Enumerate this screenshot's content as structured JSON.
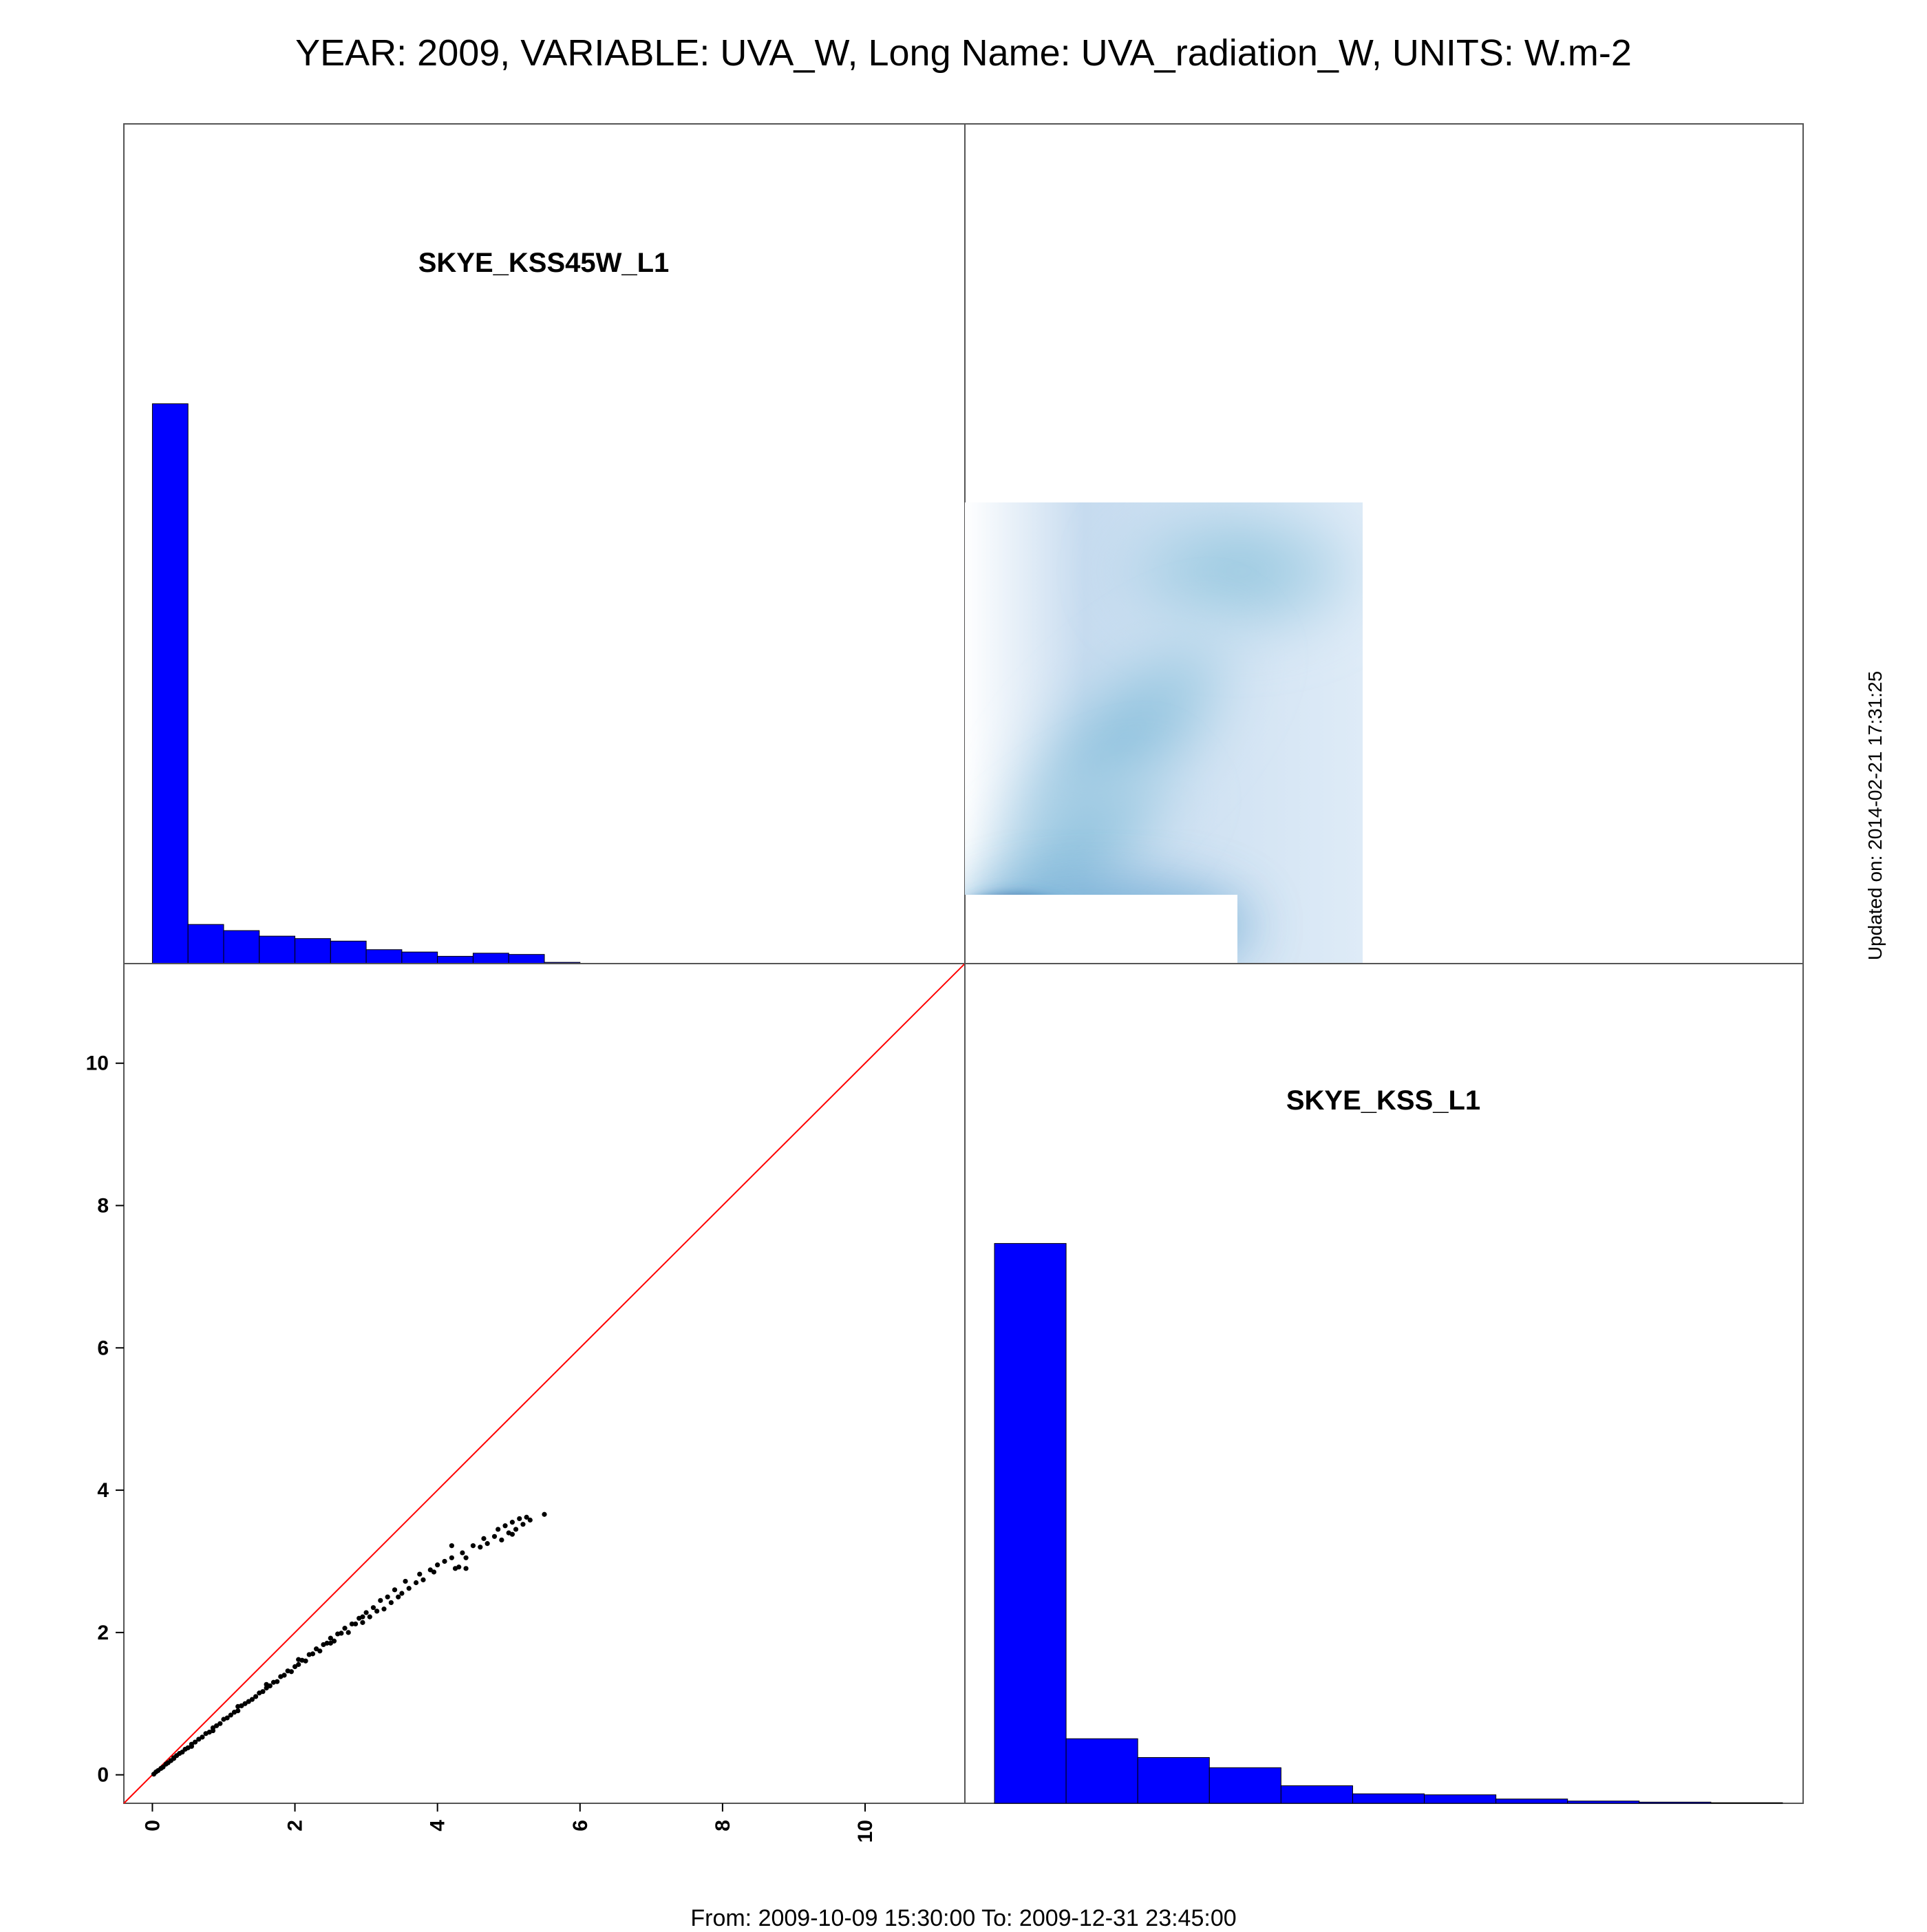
{
  "header": {
    "title": "YEAR: 2009, VARIABLE: UVA_W, Long Name: UVA_radiation_W, UNITS: W.m-2"
  },
  "footer": {
    "range": "From: 2009-10-09 15:30:00 To: 2009-12-31 23:45:00"
  },
  "side": {
    "updated": "Updated on: 2014-02-21 17:31:25"
  },
  "colors": {
    "hist_fill": "#0000ff",
    "identity_line": "#ff0000",
    "points": "#000000",
    "density_low": "#9ecae1",
    "density_high": "#7b2a8c"
  },
  "chart_data": [
    {
      "panel": "top-left",
      "type": "bar",
      "title": "SKYE_KSS45W_L1",
      "bin_edges": [
        0,
        0.5,
        1,
        1.5,
        2,
        2.5,
        3,
        3.5,
        4,
        4.5,
        5,
        5.5,
        6
      ],
      "values": [
        0.6667,
        0.0466,
        0.0393,
        0.0327,
        0.0298,
        0.0268,
        0.0166,
        0.0138,
        0.0087,
        0.0124,
        0.0109,
        0.0015
      ],
      "xlim": [
        -0.4,
        11.4
      ],
      "ylim": [
        0,
        1
      ]
    },
    {
      "panel": "top-right",
      "type": "heatmap",
      "title": "",
      "description_levels": "smoothed 2D density; darkest peak near SKYE_KSS45W_L1 = 0, SKYE_KSS_L1 = 0.5",
      "x_range": [
        0,
        5.6
      ],
      "y_range": [
        0,
        6.5
      ],
      "peak": {
        "x": 0.5,
        "y": 0.5
      }
    },
    {
      "panel": "bottom-left",
      "type": "scatter",
      "title": "",
      "xlim": [
        -0.4,
        11.4
      ],
      "ylim": [
        -0.4,
        11.4
      ],
      "xticks": [
        0,
        2,
        4,
        6,
        8,
        10
      ],
      "yticks": [
        0,
        2,
        4,
        6,
        8,
        10
      ],
      "x_tick_labels": [
        "0",
        "2",
        "4",
        "6",
        "8",
        "10"
      ],
      "y_tick_labels": [
        "0",
        "2",
        "4",
        "6",
        "8",
        "10"
      ],
      "identity_line": true,
      "points": [
        [
          0.02,
          0.01
        ],
        [
          0.05,
          0.04
        ],
        [
          0.08,
          0.06
        ],
        [
          0.12,
          0.09
        ],
        [
          0.15,
          0.11
        ],
        [
          0.19,
          0.15
        ],
        [
          0.22,
          0.17
        ],
        [
          0.26,
          0.2
        ],
        [
          0.3,
          0.23
        ],
        [
          0.34,
          0.27
        ],
        [
          0.38,
          0.3
        ],
        [
          0.42,
          0.32
        ],
        [
          0.46,
          0.36
        ],
        [
          0.5,
          0.38
        ],
        [
          0.55,
          0.43
        ],
        [
          0.6,
          0.46
        ],
        [
          0.65,
          0.5
        ],
        [
          0.7,
          0.53
        ],
        [
          0.75,
          0.58
        ],
        [
          0.8,
          0.6
        ],
        [
          0.85,
          0.66
        ],
        [
          0.9,
          0.69
        ],
        [
          0.95,
          0.72
        ],
        [
          1.0,
          0.78
        ],
        [
          1.05,
          0.8
        ],
        [
          1.1,
          0.84
        ],
        [
          1.15,
          0.88
        ],
        [
          1.2,
          0.9
        ],
        [
          1.25,
          0.97
        ],
        [
          1.3,
          1.0
        ],
        [
          1.35,
          1.03
        ],
        [
          1.4,
          1.06
        ],
        [
          1.45,
          1.1
        ],
        [
          1.5,
          1.15
        ],
        [
          1.55,
          1.17
        ],
        [
          1.6,
          1.22
        ],
        [
          1.65,
          1.25
        ],
        [
          1.7,
          1.3
        ],
        [
          1.75,
          1.31
        ],
        [
          1.8,
          1.38
        ],
        [
          1.85,
          1.4
        ],
        [
          1.9,
          1.46
        ],
        [
          1.95,
          1.45
        ],
        [
          2.0,
          1.52
        ],
        [
          2.05,
          1.55
        ],
        [
          2.1,
          1.61
        ],
        [
          2.15,
          1.6
        ],
        [
          2.2,
          1.69
        ],
        [
          2.25,
          1.7
        ],
        [
          2.3,
          1.77
        ],
        [
          2.35,
          1.74
        ],
        [
          2.4,
          1.83
        ],
        [
          2.45,
          1.85
        ],
        [
          2.5,
          1.92
        ],
        [
          2.55,
          1.88
        ],
        [
          2.6,
          1.98
        ],
        [
          2.65,
          1.99
        ],
        [
          2.7,
          2.06
        ],
        [
          2.75,
          2.0
        ],
        [
          2.8,
          2.12
        ],
        [
          2.85,
          2.12
        ],
        [
          2.9,
          2.2
        ],
        [
          2.95,
          2.14
        ],
        [
          3.0,
          2.28
        ],
        [
          3.05,
          2.22
        ],
        [
          3.1,
          2.35
        ],
        [
          3.15,
          2.3
        ],
        [
          3.2,
          2.45
        ],
        [
          3.25,
          2.33
        ],
        [
          3.3,
          2.5
        ],
        [
          3.35,
          2.42
        ],
        [
          3.4,
          2.6
        ],
        [
          3.5,
          2.55
        ],
        [
          3.55,
          2.72
        ],
        [
          3.6,
          2.62
        ],
        [
          3.7,
          2.7
        ],
        [
          3.75,
          2.82
        ],
        [
          3.8,
          2.74
        ],
        [
          3.9,
          2.88
        ],
        [
          4.0,
          2.95
        ],
        [
          4.1,
          3.0
        ],
        [
          4.2,
          3.05
        ],
        [
          4.25,
          2.9
        ],
        [
          4.3,
          2.92
        ],
        [
          4.35,
          3.12
        ],
        [
          4.4,
          3.05
        ],
        [
          4.5,
          3.22
        ],
        [
          4.6,
          3.2
        ],
        [
          4.65,
          3.32
        ],
        [
          4.7,
          3.25
        ],
        [
          4.8,
          3.35
        ],
        [
          4.85,
          3.45
        ],
        [
          4.9,
          3.3
        ],
        [
          5.0,
          3.4
        ],
        [
          5.05,
          3.55
        ],
        [
          5.1,
          3.45
        ],
        [
          5.15,
          3.6
        ],
        [
          5.2,
          3.52
        ],
        [
          5.25,
          3.62
        ],
        [
          5.3,
          3.58
        ],
        [
          5.5,
          3.66
        ],
        [
          0.3,
          0.24
        ],
        [
          0.55,
          0.4
        ],
        [
          0.85,
          0.62
        ],
        [
          1.2,
          0.96
        ],
        [
          1.6,
          1.27
        ],
        [
          2.05,
          1.62
        ],
        [
          2.5,
          1.85
        ],
        [
          2.95,
          2.22
        ],
        [
          3.45,
          2.5
        ],
        [
          3.95,
          2.85
        ],
        [
          4.2,
          3.22
        ],
        [
          4.4,
          2.9
        ],
        [
          4.95,
          3.5
        ],
        [
          5.05,
          3.38
        ]
      ]
    },
    {
      "panel": "bottom-right",
      "type": "bar",
      "title": "SKYE_KSS_L1",
      "bin_edges": [
        0,
        1,
        2,
        3,
        4,
        5,
        6,
        7,
        8,
        9,
        10,
        11
      ],
      "values": [
        0.6667,
        0.0769,
        0.0545,
        0.0424,
        0.0209,
        0.0113,
        0.0101,
        0.0051,
        0.0027,
        0.0014,
        0.0007
      ],
      "ylim": [
        0,
        1
      ]
    }
  ]
}
